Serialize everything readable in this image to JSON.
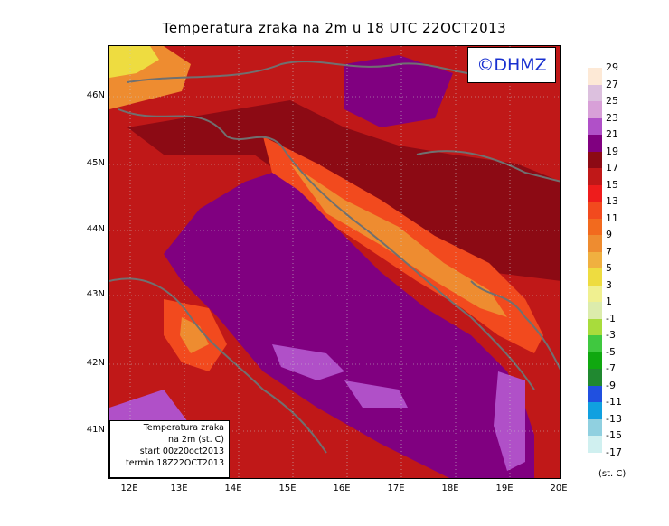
{
  "title": "Temperatura zraka na 2m u 18 UTC 22OCT2013",
  "logo": "©DHMZ",
  "infobox": {
    "line1": "Temperatura zraka",
    "line2": "na 2m (st. C)",
    "line3": "start 00z20oct2013",
    "line4": "termin 18Z22OCT2013"
  },
  "lat_labels": [
    "46N",
    "45N",
    "44N",
    "43N",
    "42N",
    "41N"
  ],
  "lon_labels": [
    "12E",
    "13E",
    "14E",
    "15E",
    "16E",
    "17E",
    "18E",
    "19E",
    "20E"
  ],
  "legend": {
    "labels": [
      "29",
      "27",
      "25",
      "23",
      "21",
      "19",
      "17",
      "15",
      "13",
      "11",
      "9",
      "7",
      "5",
      "3",
      "1",
      "-1",
      "-3",
      "-5",
      "-7",
      "-9",
      "-11",
      "-13",
      "-15",
      "-17"
    ],
    "colors": [
      "#fde9d6",
      "#dcc0de",
      "#d8a0d8",
      "#b050c8",
      "#800080",
      "#8c0a14",
      "#c01818",
      "#ee1c1c",
      "#f24a1e",
      "#f26a1e",
      "#ee8c30",
      "#f0b040",
      "#eedc40",
      "#f0f090",
      "#dcecac",
      "#a8dc3c",
      "#40c840",
      "#10a810",
      "#208830",
      "#2050e0",
      "#10a0e0",
      "#90d0e0",
      "#d0f0f0"
    ],
    "units": "(st. C)"
  }
}
